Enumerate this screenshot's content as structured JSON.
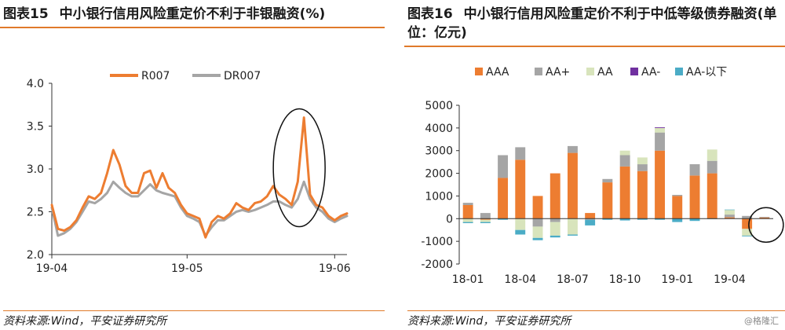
{
  "left": {
    "fig_no": "图表15",
    "title": "中小银行信用风险重定价不利于非银融资(%)",
    "source": "资料来源:Wind，平安证券研究所"
  },
  "right": {
    "fig_no": "图表16",
    "title": "中小银行信用风险重定价不利于中低等级债券融资(单位：亿元)",
    "source": "资料来源:Wind，平安证券研究所"
  },
  "watermark": "@格隆汇",
  "colors": {
    "orange": "#ed7d31",
    "gray": "#a5a5a5",
    "light_green": "#d8e4bc",
    "purple": "#7030a0",
    "teal": "#4bacc6",
    "title_rule": "#e07a2a"
  },
  "chart_data": [
    {
      "type": "line",
      "x_ticks": [
        "19-04",
        "19-05",
        "19-06"
      ],
      "x_tick_index": [
        0,
        22,
        46
      ],
      "ylim": [
        2.0,
        4.0
      ],
      "y_ticks": [
        "2.0",
        "2.5",
        "3.0",
        "3.5",
        "4.0"
      ],
      "legend_position": "top",
      "annotation": "ellipse-around-late-May-spike",
      "series": [
        {
          "name": "R007",
          "color": "#ed7d31",
          "values": [
            2.58,
            2.3,
            2.28,
            2.32,
            2.4,
            2.55,
            2.68,
            2.65,
            2.72,
            2.95,
            3.22,
            3.05,
            2.8,
            2.72,
            2.72,
            2.95,
            2.98,
            2.78,
            2.95,
            2.78,
            2.72,
            2.58,
            2.48,
            2.45,
            2.42,
            2.2,
            2.38,
            2.45,
            2.42,
            2.48,
            2.6,
            2.55,
            2.52,
            2.6,
            2.62,
            2.68,
            2.8,
            2.7,
            2.65,
            2.58,
            2.85,
            3.6,
            2.7,
            2.58,
            2.55,
            2.45,
            2.4,
            2.45,
            2.48
          ]
        },
        {
          "name": "DR007",
          "color": "#a5a5a5",
          "values": [
            2.55,
            2.22,
            2.25,
            2.3,
            2.38,
            2.5,
            2.62,
            2.6,
            2.65,
            2.72,
            2.85,
            2.78,
            2.72,
            2.68,
            2.68,
            2.75,
            2.82,
            2.75,
            2.72,
            2.7,
            2.68,
            2.55,
            2.45,
            2.42,
            2.38,
            2.22,
            2.32,
            2.4,
            2.4,
            2.45,
            2.5,
            2.52,
            2.5,
            2.52,
            2.55,
            2.58,
            2.62,
            2.62,
            2.58,
            2.55,
            2.65,
            2.85,
            2.65,
            2.55,
            2.5,
            2.42,
            2.38,
            2.42,
            2.45
          ]
        }
      ]
    },
    {
      "type": "bar",
      "stacked": true,
      "categories": [
        "18-01",
        "18-02",
        "18-03",
        "18-04",
        "18-05",
        "18-06",
        "18-07",
        "18-08",
        "18-09",
        "18-10",
        "18-11",
        "18-12",
        "19-01",
        "19-02",
        "19-03",
        "19-04",
        "19-05",
        "19-06"
      ],
      "x_ticks": [
        "18-01",
        "18-04",
        "18-07",
        "18-10",
        "19-01",
        "19-04"
      ],
      "x_tick_index": [
        0,
        3,
        6,
        9,
        12,
        15
      ],
      "ylim": [
        -2000,
        5000
      ],
      "y_ticks": [
        "-2000",
        "-1000",
        "0",
        "1000",
        "2000",
        "3000",
        "4000",
        "5000"
      ],
      "legend_position": "top",
      "annotation": "circle-around-19-06",
      "series": [
        {
          "name": "AAA",
          "color": "#ed7d31",
          "values": [
            600,
            -50,
            1800,
            2600,
            1000,
            2000,
            2900,
            250,
            1600,
            2300,
            2100,
            3000,
            1000,
            1900,
            2000,
            60,
            -450,
            50
          ]
        },
        {
          "name": "AA+",
          "color": "#a5a5a5",
          "values": [
            100,
            250,
            1000,
            550,
            -350,
            -150,
            300,
            -50,
            150,
            500,
            300,
            800,
            50,
            500,
            550,
            120,
            120,
            30
          ]
        },
        {
          "name": "AA",
          "color": "#d8e4bc",
          "values": [
            -150,
            -100,
            0,
            -500,
            -500,
            -600,
            -700,
            0,
            0,
            200,
            300,
            200,
            0,
            0,
            500,
            200,
            -300,
            0
          ]
        },
        {
          "name": "AA-",
          "color": "#7030a0",
          "values": [
            0,
            0,
            0,
            0,
            0,
            0,
            0,
            0,
            0,
            0,
            0,
            30,
            0,
            0,
            0,
            0,
            0,
            0
          ]
        },
        {
          "name": "AA-以下",
          "color": "#4bacc6",
          "values": [
            -50,
            -50,
            -50,
            -200,
            -100,
            -80,
            -50,
            -250,
            -50,
            -80,
            -50,
            -50,
            -150,
            -100,
            -20,
            20,
            -30,
            0
          ]
        }
      ]
    }
  ]
}
